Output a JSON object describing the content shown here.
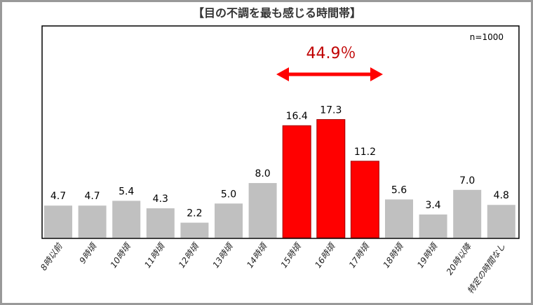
{
  "chart_data": {
    "type": "bar",
    "title": "【目の不調を最も感じる時間帯】",
    "note": "n=1000",
    "annotation": "44.9％",
    "categories": [
      "8時以前",
      "9時頃",
      "10時頃",
      "11時頃",
      "12時頃",
      "13時頃",
      "14時頃",
      "15時頃",
      "16時頃",
      "17時頃",
      "18時頃",
      "19時頃",
      "20時以降",
      "特定の時間なし"
    ],
    "values": [
      4.7,
      4.7,
      5.4,
      4.3,
      2.2,
      5.0,
      8.0,
      16.4,
      17.3,
      11.2,
      5.6,
      3.4,
      7.0,
      4.8
    ],
    "value_labels": [
      "4.7",
      "4.7",
      "5.4",
      "4.3",
      "2.2",
      "5.0",
      "8.0",
      "16.4",
      "17.3",
      "11.2",
      "5.6",
      "3.4",
      "7.0",
      "4.8"
    ],
    "highlighted": [
      7,
      8,
      9
    ],
    "ylim": [
      0,
      31
    ],
    "xlabel": "",
    "ylabel": "",
    "colors": {
      "normal": "#c0c0c0",
      "highlight": "#ff0000",
      "annotation": "#c00000",
      "arrow": "#ff0000"
    }
  }
}
